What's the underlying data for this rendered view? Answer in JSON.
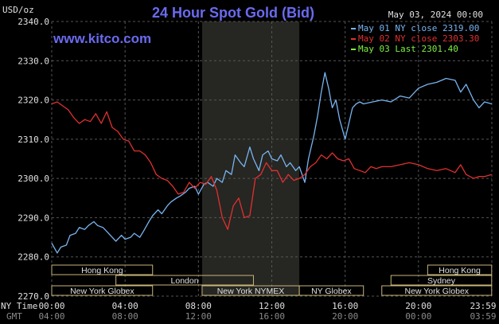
{
  "header": {
    "title": "24 Hour Spot Gold (Bid)",
    "date": "May 03, 2024 00:00",
    "unit": "USD/oz",
    "site": "www.kitco.com"
  },
  "legend": [
    {
      "label": "May 01 NY close 2319.00",
      "color": "#78b4f0"
    },
    {
      "label": "May 02 NY close 2303.30",
      "color": "#e03030"
    },
    {
      "label": "May 03 Last 2301.40",
      "color": "#80f040"
    }
  ],
  "time_axis": {
    "ny_label": "NY Time",
    "gmt_label": "GMT",
    "ny_ticks": [
      "00:00",
      "04:00",
      "08:00",
      "12:00",
      "16:00",
      "20:00",
      "23:59"
    ],
    "gmt_ticks": [
      "04:00",
      "08:00",
      "12:00",
      "16:00",
      "20:00",
      "00:00",
      "03:59"
    ]
  },
  "markets": [
    {
      "name": "Hong Kong",
      "start": 0.0,
      "end": 5.5,
      "row": 0
    },
    {
      "name": "Hong Kong",
      "start": 20.5,
      "end": 23.99,
      "row": 0
    },
    {
      "name": "Sydney",
      "start": 18.5,
      "end": 23.99,
      "row": 1
    },
    {
      "name": "London",
      "start": 3.5,
      "end": 11.0,
      "row": 1
    },
    {
      "name": "New York Globex",
      "start": 0.0,
      "end": 5.5,
      "row": 2
    },
    {
      "name": "New York NYMEX",
      "start": 8.2,
      "end": 13.5,
      "row": 2
    },
    {
      "name": "NY Globex",
      "start": 13.5,
      "end": 17.0,
      "row": 2
    },
    {
      "name": "New York Globex",
      "start": 18.0,
      "end": 23.99,
      "row": 2
    }
  ],
  "chart_data": {
    "type": "line",
    "title": "24 Hour Spot Gold (Bid)",
    "ylabel": "USD/oz",
    "ylim": [
      2270,
      2340
    ],
    "xlim": [
      0,
      24
    ],
    "yticks": [
      2270.0,
      2280.0,
      2290.0,
      2300.0,
      2310.0,
      2320.0,
      2330.0,
      2340.0
    ],
    "ytick_labels": [
      "2270.0",
      "2280.0",
      "2290.0",
      "2300.0",
      "2310.0",
      "2320.0",
      "2330.0",
      "2340.0"
    ],
    "grid": true,
    "shaded_hours": [
      8.2,
      13.5
    ],
    "legend_position": "top-right",
    "series": [
      {
        "name": "May 01 NY close 2319.00",
        "color": "#78b4f0",
        "x": [
          0.0,
          0.3,
          0.5,
          0.8,
          1.0,
          1.3,
          1.5,
          1.8,
          2.0,
          2.3,
          2.5,
          2.8,
          3.0,
          3.3,
          3.5,
          3.8,
          4.0,
          4.3,
          4.5,
          4.8,
          5.0,
          5.3,
          5.5,
          5.8,
          6.0,
          6.3,
          6.5,
          6.8,
          7.0,
          7.3,
          7.5,
          7.8,
          8.0,
          8.3,
          8.5,
          8.8,
          9.0,
          9.3,
          9.5,
          9.8,
          10.0,
          10.3,
          10.5,
          10.8,
          11.0,
          11.3,
          11.5,
          11.8,
          12.0,
          12.3,
          12.5,
          12.8,
          13.0,
          13.3,
          13.5,
          13.8,
          14.0,
          14.3,
          14.5,
          14.7,
          14.9,
          15.1,
          15.3,
          15.5,
          15.7,
          16.0,
          16.2,
          16.4,
          16.6,
          16.8,
          17.0,
          17.5,
          18.0,
          18.5,
          19.0,
          19.5,
          20.0,
          20.5,
          21.0,
          21.5,
          22.0,
          22.3,
          22.6,
          23.0,
          23.3,
          23.6,
          23.99
        ],
        "values": [
          2283.5,
          2281,
          2282.5,
          2283,
          2285.5,
          2286,
          2287.5,
          2287,
          2288,
          2289,
          2288,
          2287.5,
          2286.5,
          2285,
          2284,
          2285.5,
          2284.5,
          2285,
          2286,
          2285,
          2286.5,
          2289,
          2290.5,
          2292,
          2291,
          2293,
          2294,
          2295,
          2295.5,
          2296.5,
          2297.5,
          2298,
          2296,
          2298.5,
          2299,
          2298,
          2300,
          2299,
          2302,
          2301,
          2306,
          2304,
          2303,
          2308,
          2305,
          2302,
          2306,
          2307,
          2305,
          2304.5,
          2306,
          2303,
          2304,
          2302,
          2303,
          2299,
          2305,
          2311,
          2316,
          2322,
          2327,
          2323,
          2318,
          2320,
          2315,
          2310,
          2314,
          2318,
          2319,
          2319.5,
          2319,
          2319.5,
          2320,
          2319.5,
          2321,
          2320.5,
          2323,
          2324,
          2324.5,
          2325.5,
          2325,
          2322,
          2324,
          2320,
          2318,
          2319.5,
          2319
        ]
      },
      {
        "name": "May 02 NY close 2303.30",
        "color": "#e03030",
        "x": [
          0.0,
          0.3,
          0.6,
          0.9,
          1.2,
          1.5,
          1.8,
          2.1,
          2.4,
          2.7,
          3.0,
          3.3,
          3.6,
          3.9,
          4.2,
          4.5,
          4.8,
          5.1,
          5.4,
          5.7,
          6.0,
          6.3,
          6.6,
          6.9,
          7.2,
          7.5,
          7.8,
          8.1,
          8.4,
          8.7,
          9.0,
          9.3,
          9.6,
          9.9,
          10.2,
          10.5,
          10.8,
          11.1,
          11.4,
          11.7,
          12.0,
          12.3,
          12.6,
          12.9,
          13.2,
          13.5,
          13.8,
          14.1,
          14.4,
          14.7,
          15.0,
          15.3,
          15.6,
          15.9,
          16.2,
          16.5,
          16.8,
          17.1,
          17.4,
          17.7,
          18.0,
          18.5,
          19.0,
          19.5,
          20.0,
          20.5,
          21.0,
          21.5,
          22.0,
          22.3,
          22.6,
          23.0,
          23.3,
          23.6,
          23.99
        ],
        "values": [
          2319,
          2319.5,
          2318.5,
          2317.5,
          2315.5,
          2314,
          2315,
          2314.5,
          2316.5,
          2314,
          2317,
          2313,
          2312,
          2310,
          2309.5,
          2307,
          2307,
          2306,
          2304,
          2301,
          2300,
          2299.5,
          2298,
          2296,
          2296.5,
          2299,
          2297.5,
          2299,
          2298.5,
          2300.5,
          2297,
          2290,
          2287,
          2293,
          2295,
          2290,
          2290.5,
          2300,
          2301,
          2304,
          2302,
          2302,
          2299,
          2301,
          2299.5,
          2300,
          2301,
          2303,
          2304,
          2306,
          2305,
          2306.5,
          2305,
          2304.5,
          2305,
          2302.5,
          2302,
          2301.5,
          2303,
          2302.5,
          2303,
          2303,
          2303.5,
          2304,
          2303.5,
          2302.5,
          2302,
          2302.5,
          2301.5,
          2303.5,
          2301,
          2300,
          2300.5,
          2300.5,
          2301
        ]
      },
      {
        "name": "May 03 Last 2301.40",
        "color": "#80f040",
        "x": [],
        "values": []
      }
    ]
  }
}
